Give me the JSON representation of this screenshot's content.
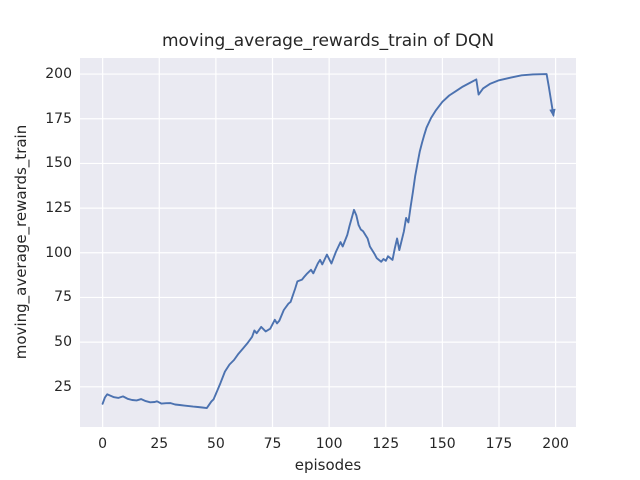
{
  "colors": {
    "figure_bg": "#ffffff",
    "axes_bg": "#eaeaf2",
    "grid": "#ffffff",
    "line": "#4c72b0",
    "text": "#262626"
  },
  "chart_data": {
    "type": "line",
    "title": "moving_average_rewards_train of DQN",
    "xlabel": "episodes",
    "ylabel": "moving_average_rewards_train",
    "x_ticks": [
      0,
      25,
      50,
      75,
      100,
      125,
      150,
      175,
      200
    ],
    "y_ticks": [
      25,
      50,
      75,
      100,
      125,
      150,
      175,
      200
    ],
    "xlim": [
      -10,
      209
    ],
    "ylim": [
      2.5,
      209
    ],
    "grid": true,
    "legend": null,
    "end_arrow": true,
    "series": [
      {
        "name": "moving_average_rewards_train",
        "points": [
          [
            0,
            15.5
          ],
          [
            1,
            19.0
          ],
          [
            2,
            20.8
          ],
          [
            3,
            20.3
          ],
          [
            5,
            19.2
          ],
          [
            7,
            18.8
          ],
          [
            9,
            19.6
          ],
          [
            11,
            18.3
          ],
          [
            13,
            17.6
          ],
          [
            15,
            17.4
          ],
          [
            17,
            18.1
          ],
          [
            19,
            17.0
          ],
          [
            21,
            16.3
          ],
          [
            23,
            16.5
          ],
          [
            24,
            16.9
          ],
          [
            26,
            15.6
          ],
          [
            28,
            15.8
          ],
          [
            30,
            15.9
          ],
          [
            32,
            15.1
          ],
          [
            34,
            14.8
          ],
          [
            36,
            14.5
          ],
          [
            38,
            14.2
          ],
          [
            40,
            13.9
          ],
          [
            42,
            13.7
          ],
          [
            44,
            13.4
          ],
          [
            46,
            13.1
          ],
          [
            48,
            16.8
          ],
          [
            49,
            18.0
          ],
          [
            50,
            21.0
          ],
          [
            52,
            27.0
          ],
          [
            54,
            33.5
          ],
          [
            56,
            37.5
          ],
          [
            58,
            40.0
          ],
          [
            60,
            43.5
          ],
          [
            62,
            46.5
          ],
          [
            64,
            49.5
          ],
          [
            66,
            53.0
          ],
          [
            67,
            56.5
          ],
          [
            68,
            55.0
          ],
          [
            70,
            58.5
          ],
          [
            72,
            56.0
          ],
          [
            74,
            57.5
          ],
          [
            76,
            62.5
          ],
          [
            77,
            60.5
          ],
          [
            78,
            62.0
          ],
          [
            80,
            68.0
          ],
          [
            82,
            71.5
          ],
          [
            83,
            72.5
          ],
          [
            85,
            80.0
          ],
          [
            86,
            84.0
          ],
          [
            88,
            85.0
          ],
          [
            89,
            86.5
          ],
          [
            90,
            88.0
          ],
          [
            92,
            90.5
          ],
          [
            93,
            88.5
          ],
          [
            95,
            94.0
          ],
          [
            96,
            96.0
          ],
          [
            97,
            93.5
          ],
          [
            99,
            99.0
          ],
          [
            101,
            94.0
          ],
          [
            103,
            100.5
          ],
          [
            105,
            106.0
          ],
          [
            106,
            103.5
          ],
          [
            108,
            110.0
          ],
          [
            109,
            115.0
          ],
          [
            111,
            124.0
          ],
          [
            112,
            121.0
          ],
          [
            113,
            115.5
          ],
          [
            114,
            113.0
          ],
          [
            115,
            112.0
          ],
          [
            117,
            108.0
          ],
          [
            118,
            103.5
          ],
          [
            120,
            99.5
          ],
          [
            121,
            97.0
          ],
          [
            123,
            95.0
          ],
          [
            124,
            96.5
          ],
          [
            125,
            95.5
          ],
          [
            126,
            98.0
          ],
          [
            127,
            97.0
          ],
          [
            128,
            96.0
          ],
          [
            129,
            102.5
          ],
          [
            130,
            108.0
          ],
          [
            131,
            101.5
          ],
          [
            133,
            112.0
          ],
          [
            134,
            119.5
          ],
          [
            135,
            117.0
          ],
          [
            136,
            126.0
          ],
          [
            137,
            134.0
          ],
          [
            138,
            143.0
          ],
          [
            139,
            150.0
          ],
          [
            140,
            156.5
          ],
          [
            141,
            161.5
          ],
          [
            142,
            166.0
          ],
          [
            143,
            170.0
          ],
          [
            145,
            175.5
          ],
          [
            147,
            179.5
          ],
          [
            150,
            184.5
          ],
          [
            153,
            188.0
          ],
          [
            156,
            190.5
          ],
          [
            159,
            193.0
          ],
          [
            162,
            195.0
          ],
          [
            165,
            197.0
          ],
          [
            166,
            188.5
          ],
          [
            168,
            192.0
          ],
          [
            171,
            194.5
          ],
          [
            175,
            196.5
          ],
          [
            180,
            198.0
          ],
          [
            185,
            199.3
          ],
          [
            190,
            199.8
          ],
          [
            196,
            200.0
          ],
          [
            197,
            193.0
          ],
          [
            198,
            185.0
          ],
          [
            199,
            177.0
          ]
        ]
      }
    ]
  }
}
